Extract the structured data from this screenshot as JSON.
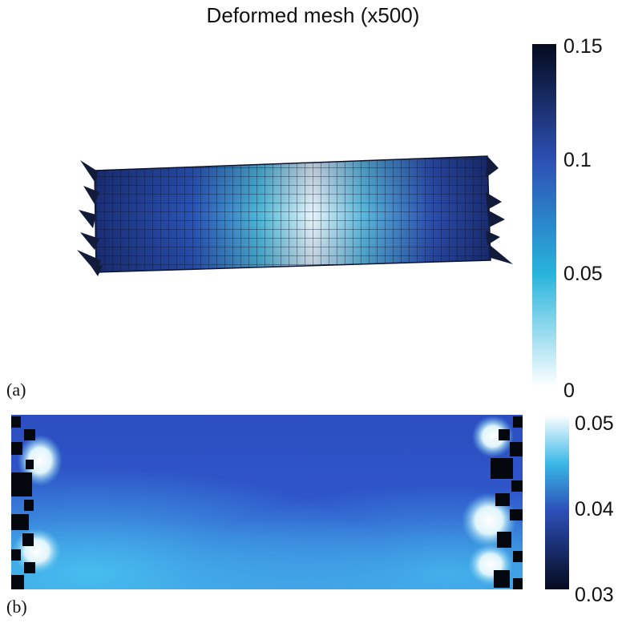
{
  "figure": {
    "title": "Deformed mesh (x500)",
    "panel_a_label": "(a)",
    "panel_b_label": "(b)"
  },
  "colorbar_a": {
    "min": 0,
    "max": 0.15,
    "ticks": [
      "0.15",
      "0.1",
      "0.05",
      "0"
    ],
    "colors": [
      "#ffffff",
      "#28b4dc",
      "#2d50b4",
      "#050a1e"
    ]
  },
  "colorbar_b": {
    "min": 0.03,
    "max": 0.05,
    "ticks": [
      "0.05",
      "0.04",
      "0.03"
    ],
    "colors": [
      "#ffffff",
      "#3ab8e6",
      "#2d4fb8",
      "#050a1e"
    ]
  }
}
